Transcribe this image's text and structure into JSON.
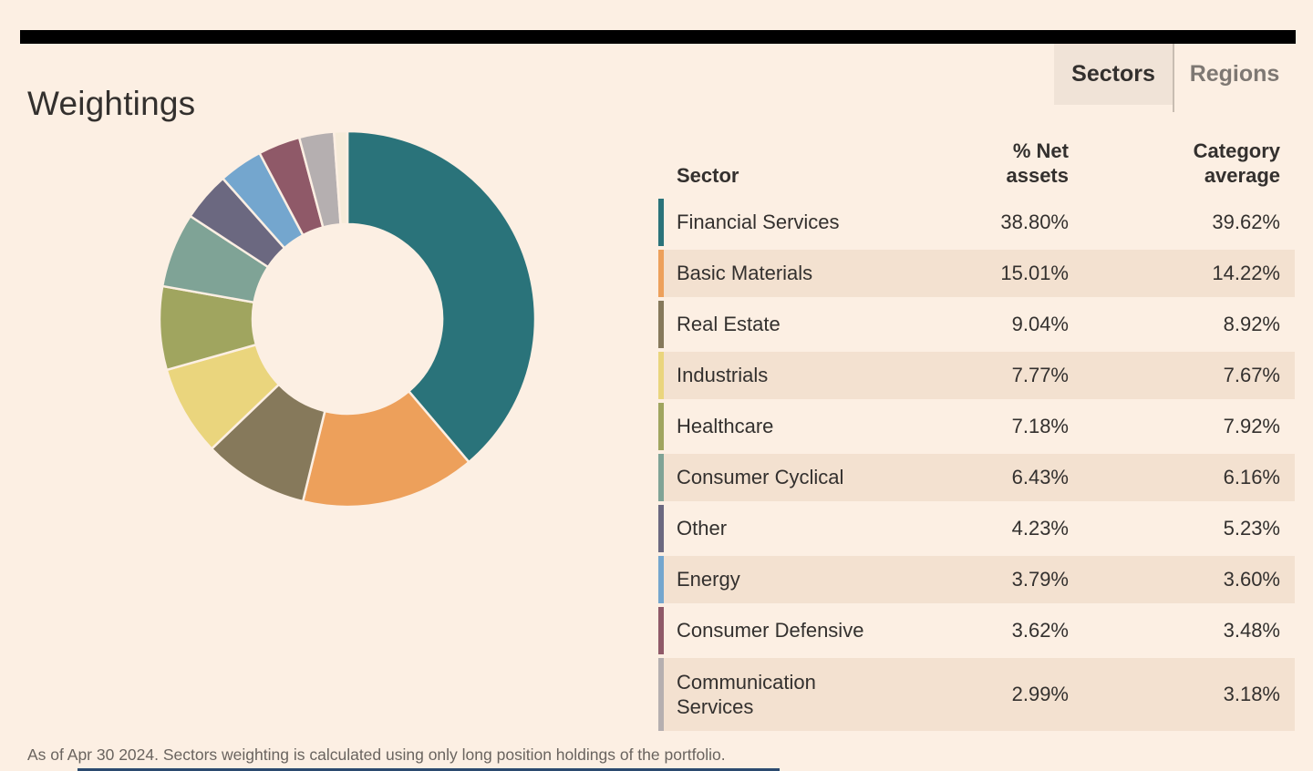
{
  "page": {
    "background": "#FCEFE3",
    "top_bar_color": "#000000",
    "shaded_row_color": "#F3E1D0",
    "active_tab_background": "#F0E3D7",
    "bottom_partial_bar_color": "#2B4A6F"
  },
  "header": {
    "title": "Weightings",
    "tabs": [
      {
        "label": "Sectors",
        "active": true
      },
      {
        "label": "Regions",
        "active": false
      }
    ]
  },
  "table": {
    "columns": [
      "Sector",
      "% Net assets",
      "Category average"
    ],
    "rows": [
      {
        "sector": "Financial Services",
        "net_assets": "38.80%",
        "category_average": "39.62%",
        "color": "#2A737A",
        "shaded": false
      },
      {
        "sector": "Basic Materials",
        "net_assets": "15.01%",
        "category_average": "14.22%",
        "color": "#EDA05B",
        "shaded": true
      },
      {
        "sector": "Real Estate",
        "net_assets": "9.04%",
        "category_average": "8.92%",
        "color": "#86795B",
        "shaded": false
      },
      {
        "sector": "Industrials",
        "net_assets": "7.77%",
        "category_average": "7.67%",
        "color": "#EAD57D",
        "shaded": true
      },
      {
        "sector": "Healthcare",
        "net_assets": "7.18%",
        "category_average": "7.92%",
        "color": "#A0A55F",
        "shaded": false
      },
      {
        "sector": "Consumer Cyclical",
        "net_assets": "6.43%",
        "category_average": "6.16%",
        "color": "#7FA396",
        "shaded": true
      },
      {
        "sector": "Other",
        "net_assets": "4.23%",
        "category_average": "5.23%",
        "color": "#6B6880",
        "shaded": false
      },
      {
        "sector": "Energy",
        "net_assets": "3.79%",
        "category_average": "3.60%",
        "color": "#74A6CE",
        "shaded": true
      },
      {
        "sector": "Consumer Defensive",
        "net_assets": "3.62%",
        "category_average": "3.48%",
        "color": "#8F5968",
        "shaded": false
      },
      {
        "sector": "Communication Services",
        "net_assets": "2.99%",
        "category_average": "3.18%",
        "color": "#B5AFB0",
        "shaded": true
      }
    ]
  },
  "chart_data": {
    "type": "pie",
    "subtype": "donut",
    "start_angle_deg": 0,
    "direction": "clockwise",
    "inner_radius_ratio": 0.5,
    "slices": [
      {
        "label": "Financial Services",
        "value": 38.8,
        "color": "#2A737A"
      },
      {
        "label": "Basic Materials",
        "value": 15.01,
        "color": "#EDA05B"
      },
      {
        "label": "Real Estate",
        "value": 9.04,
        "color": "#86795B"
      },
      {
        "label": "Industrials",
        "value": 7.77,
        "color": "#EAD57D"
      },
      {
        "label": "Healthcare",
        "value": 7.18,
        "color": "#A0A55F"
      },
      {
        "label": "Consumer Cyclical",
        "value": 6.43,
        "color": "#7FA396"
      },
      {
        "label": "Other",
        "value": 4.23,
        "color": "#6B6880"
      },
      {
        "label": "Energy",
        "value": 3.79,
        "color": "#74A6CE"
      },
      {
        "label": "Consumer Defensive",
        "value": 3.62,
        "color": "#8F5968"
      },
      {
        "label": "Communication Services",
        "value": 2.99,
        "color": "#B5AFB0"
      },
      {
        "label": "remainder",
        "value": 1.14,
        "color": "#F6EBD9"
      }
    ]
  },
  "footnote": "As of Apr 30 2024. Sectors weighting is calculated using only long position holdings of the portfolio."
}
